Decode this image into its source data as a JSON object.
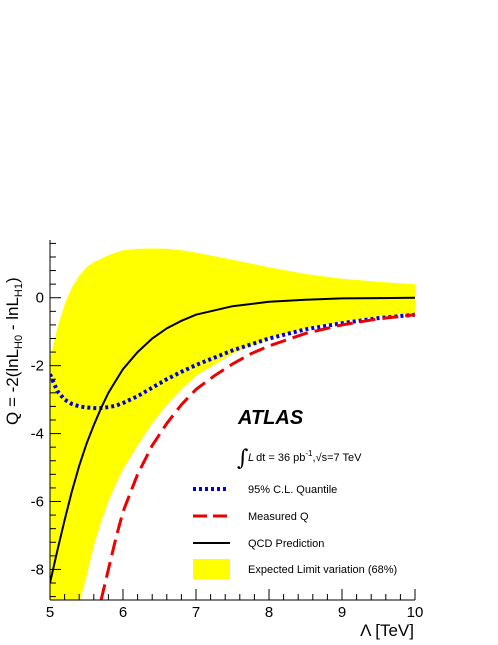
{
  "chart_data": {
    "type": "line",
    "experiment_label": "ATLAS",
    "annotation": "∫L dt = 36 pb⁻¹, √s=7 TeV",
    "annotation_parts": {
      "integral": "∫",
      "L": "L",
      "dt": "dt = 36 pb",
      "sup": "-1",
      "sqrt": "√",
      "s": "s=7 TeV"
    },
    "xlabel": "Λ [TeV]",
    "ylabel_parts": {
      "main": "Q = -2(lnL",
      "sub1": "H0",
      "mid": " - lnL",
      "sub2": "H1",
      "end": ")"
    },
    "xlim": [
      5,
      10
    ],
    "ylim": [
      -8.9,
      1.7
    ],
    "x_ticks": [
      5,
      6,
      7,
      8,
      9,
      10
    ],
    "x_tick_labels": [
      "5",
      "6",
      "7",
      "8",
      "9",
      "10"
    ],
    "y_ticks": [
      0,
      -2,
      -4,
      -6,
      -8
    ],
    "y_tick_labels": [
      "0",
      "-2",
      "-4",
      "-6",
      "-8"
    ],
    "band": {
      "name": "Expected Limit variation (68%)",
      "color": "#ffff00",
      "x": [
        5.0,
        5.1,
        5.2,
        5.3,
        5.4,
        5.5,
        5.6,
        5.7,
        5.8,
        5.9,
        6.0,
        6.2,
        6.4,
        6.6,
        6.8,
        7.0,
        7.5,
        8.0,
        8.5,
        9.0,
        9.5,
        10.0
      ],
      "upper": [
        -1.8,
        -0.9,
        -0.2,
        0.3,
        0.65,
        0.9,
        1.05,
        1.15,
        1.25,
        1.33,
        1.4,
        1.44,
        1.45,
        1.44,
        1.4,
        1.33,
        1.12,
        0.9,
        0.7,
        0.56,
        0.47,
        0.4
      ],
      "lower": [
        -9.5,
        -9.5,
        -9.5,
        -9.5,
        -9.0,
        -8.2,
        -7.3,
        -6.6,
        -6.0,
        -5.5,
        -5.05,
        -4.35,
        -3.7,
        -3.15,
        -2.7,
        -2.3,
        -1.65,
        -1.2,
        -0.9,
        -0.7,
        -0.55,
        -0.45
      ]
    },
    "series": [
      {
        "name": "QCD Prediction",
        "color": "#000000",
        "style": "solid",
        "x": [
          5.0,
          5.1,
          5.2,
          5.3,
          5.4,
          5.5,
          5.6,
          5.7,
          5.8,
          5.9,
          6.0,
          6.2,
          6.4,
          6.6,
          6.8,
          7.0,
          7.5,
          8.0,
          8.5,
          9.0,
          9.5,
          10.0
        ],
        "y": [
          -8.4,
          -7.45,
          -6.55,
          -5.7,
          -4.95,
          -4.3,
          -3.75,
          -3.25,
          -2.8,
          -2.45,
          -2.1,
          -1.6,
          -1.2,
          -0.9,
          -0.68,
          -0.5,
          -0.25,
          -0.12,
          -0.06,
          -0.02,
          -0.01,
          0.0
        ]
      },
      {
        "name": "95% C.L. Quantile",
        "color": "#0000dd",
        "style": "dotted",
        "x": [
          5.0,
          5.1,
          5.2,
          5.3,
          5.4,
          5.5,
          5.6,
          5.7,
          5.8,
          5.9,
          6.0,
          6.2,
          6.4,
          6.6,
          6.8,
          7.0,
          7.5,
          8.0,
          8.5,
          9.0,
          9.5,
          10.0
        ],
        "y": [
          -2.25,
          -2.75,
          -3.0,
          -3.13,
          -3.2,
          -3.23,
          -3.25,
          -3.25,
          -3.22,
          -3.18,
          -3.1,
          -2.9,
          -2.65,
          -2.4,
          -2.18,
          -1.98,
          -1.55,
          -1.2,
          -0.93,
          -0.75,
          -0.6,
          -0.5
        ]
      },
      {
        "name": "Measured Q",
        "color": "#ee0000",
        "style": "dashed",
        "x": [
          5.7,
          5.8,
          5.9,
          6.0,
          6.2,
          6.4,
          6.6,
          6.8,
          7.0,
          7.25,
          7.5,
          7.75,
          8.0,
          8.5,
          9.0,
          9.5,
          10.0
        ],
        "y": [
          -8.9,
          -8.0,
          -7.1,
          -6.3,
          -5.2,
          -4.35,
          -3.7,
          -3.15,
          -2.7,
          -2.3,
          -1.95,
          -1.65,
          -1.42,
          -1.05,
          -0.8,
          -0.62,
          -0.5
        ]
      }
    ],
    "legend_order": [
      "95% C.L. Quantile",
      "Measured Q",
      "QCD Prediction",
      "Expected Limit variation (68%)"
    ]
  }
}
